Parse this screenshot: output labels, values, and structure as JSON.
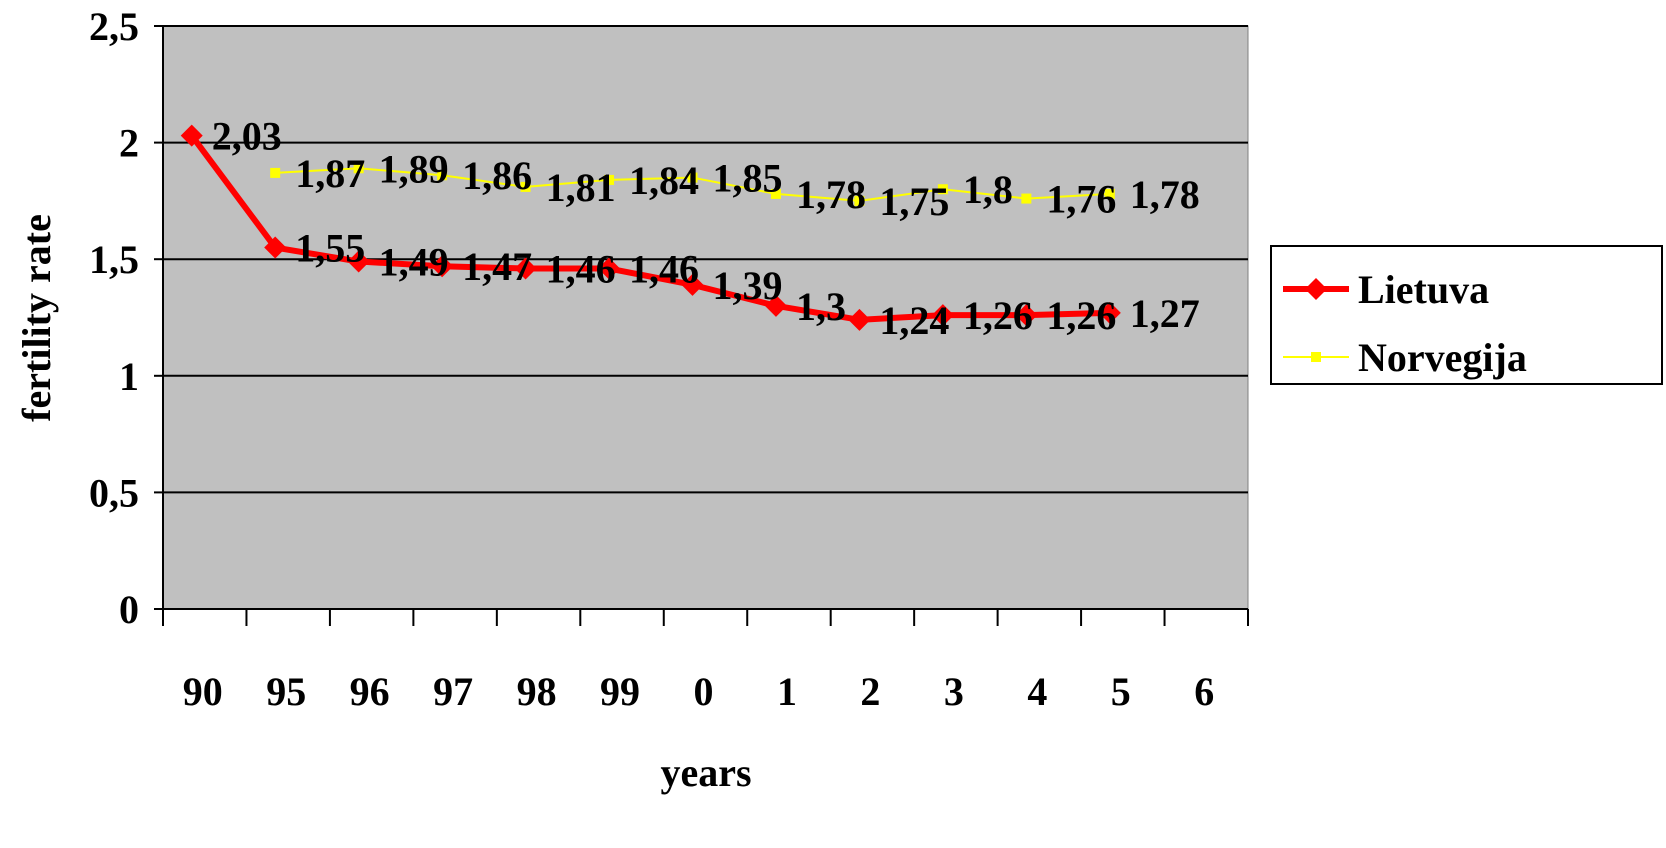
{
  "chart_data": {
    "type": "line",
    "categories": [
      "90",
      "95",
      "96",
      "97",
      "98",
      "99",
      "0",
      "1",
      "2",
      "3",
      "4",
      "5",
      "6"
    ],
    "series": [
      {
        "name": "Lietuva",
        "color": "#ff0000",
        "marker": "diamond",
        "values": [
          2.03,
          1.55,
          1.49,
          1.47,
          1.46,
          1.46,
          1.39,
          1.3,
          1.24,
          1.26,
          1.26,
          1.27,
          null
        ],
        "labels": [
          "2,03",
          "1,55",
          "1,49",
          "1,47",
          "1,46",
          "1,46",
          "1,39",
          "1,3",
          "1,24",
          "1,26",
          "1,26",
          "1,27",
          ""
        ]
      },
      {
        "name": "Norvegija",
        "color": "#ffff00",
        "marker": "square",
        "values": [
          null,
          1.87,
          1.89,
          1.86,
          1.81,
          1.84,
          1.85,
          1.78,
          1.75,
          1.8,
          1.76,
          1.78,
          null
        ],
        "labels": [
          "",
          "1,87",
          "1,89",
          "1,86",
          "1,81",
          "1,84",
          "1,85",
          "1,78",
          "1,75",
          "1,8",
          "1,76",
          "1,78",
          ""
        ]
      }
    ],
    "xlabel": "years",
    "ylabel": "fertility rate",
    "ylim": [
      0,
      2.5
    ],
    "yticks": [
      0,
      0.5,
      1,
      1.5,
      2,
      2.5
    ],
    "ytick_labels": [
      "0",
      "0,5",
      "1",
      "1,5",
      "2",
      "2,5"
    ],
    "grid": true,
    "plot_background": "#c0c0c0",
    "legend_position": "right"
  }
}
